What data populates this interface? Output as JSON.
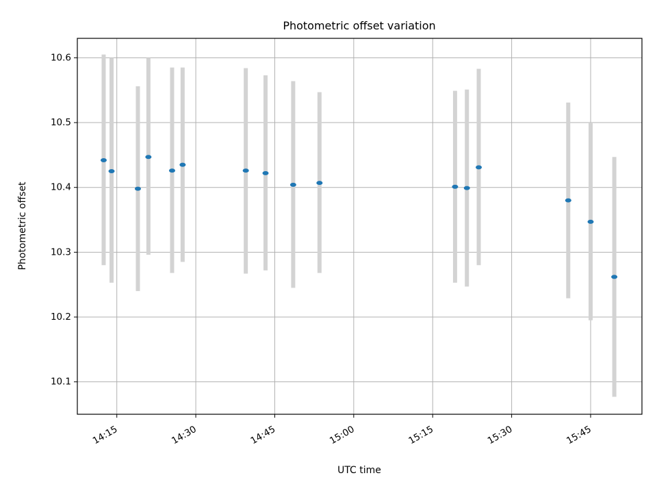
{
  "chart_data": {
    "type": "scatter",
    "title": "Photometric offset variation",
    "xlabel": "UTC time",
    "ylabel": "Photometric offset",
    "xlim": [
      "14:07:30",
      "15:54:45"
    ],
    "ylim": [
      10.05,
      10.63
    ],
    "x_ticks": [
      "14:15",
      "14:30",
      "14:45",
      "15:00",
      "15:15",
      "15:30",
      "15:45"
    ],
    "y_ticks": [
      10.1,
      10.2,
      10.3,
      10.4,
      10.5,
      10.6
    ],
    "grid": true,
    "legend": "none",
    "series": [
      {
        "marker_color": "#1f77b4",
        "errorbar_color": "#d3d3d3",
        "points": [
          {
            "x": "14:12:30",
            "y": 10.442,
            "err_low": 10.28,
            "err_high": 10.605
          },
          {
            "x": "14:14:00",
            "y": 10.425,
            "err_low": 10.253,
            "err_high": 10.6
          },
          {
            "x": "14:19:00",
            "y": 10.398,
            "err_low": 10.24,
            "err_high": 10.556
          },
          {
            "x": "14:21:00",
            "y": 10.447,
            "err_low": 10.296,
            "err_high": 10.6
          },
          {
            "x": "14:25:30",
            "y": 10.426,
            "err_low": 10.268,
            "err_high": 10.585
          },
          {
            "x": "14:27:30",
            "y": 10.435,
            "err_low": 10.285,
            "err_high": 10.585
          },
          {
            "x": "14:39:30",
            "y": 10.426,
            "err_low": 10.267,
            "err_high": 10.584
          },
          {
            "x": "14:43:15",
            "y": 10.422,
            "err_low": 10.272,
            "err_high": 10.573
          },
          {
            "x": "14:48:30",
            "y": 10.404,
            "err_low": 10.245,
            "err_high": 10.564
          },
          {
            "x": "14:53:30",
            "y": 10.407,
            "err_low": 10.268,
            "err_high": 10.547
          },
          {
            "x": "15:19:15",
            "y": 10.401,
            "err_low": 10.253,
            "err_high": 10.549
          },
          {
            "x": "15:21:30",
            "y": 10.399,
            "err_low": 10.247,
            "err_high": 10.551
          },
          {
            "x": "15:23:45",
            "y": 10.431,
            "err_low": 10.28,
            "err_high": 10.583
          },
          {
            "x": "15:40:45",
            "y": 10.38,
            "err_low": 10.229,
            "err_high": 10.531
          },
          {
            "x": "15:45:00",
            "y": 10.347,
            "err_low": 10.195,
            "err_high": 10.5
          },
          {
            "x": "15:49:30",
            "y": 10.262,
            "err_low": 10.077,
            "err_high": 10.447
          }
        ]
      }
    ]
  }
}
